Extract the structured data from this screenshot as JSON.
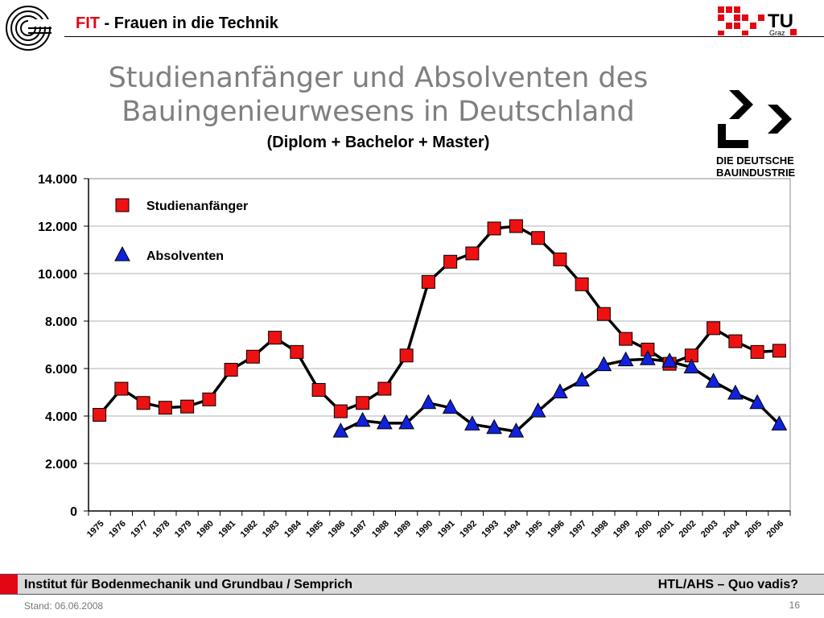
{
  "header": {
    "fit": "FIT",
    "rest": " - Frauen in die Technik",
    "tu_logo_text": "TU",
    "tu_logo_sub": "Graz"
  },
  "title": {
    "line1": "Studienanfänger und Absolventen des",
    "line2": "Bauingenieurwesens in Deutschland",
    "subtitle": "(Diplom + Bachelor + Master)"
  },
  "logo_bau": {
    "line1": "DIE DEUTSCHE",
    "line2": "BAUINDUSTRIE"
  },
  "colors": {
    "accent": "#e30613",
    "square_marker": "#ee1111",
    "triangle_marker": "#1122dd",
    "line": "#000000",
    "title_gray": "#7f7f7f"
  },
  "chart_data": {
    "type": "line",
    "categories": [
      "1975",
      "1976",
      "1977",
      "1978",
      "1979",
      "1980",
      "1981",
      "1982",
      "1983",
      "1984",
      "1985",
      "1986",
      "1987",
      "1988",
      "1989",
      "1990",
      "1991",
      "1992",
      "1993",
      "1994",
      "1995",
      "1996",
      "1997",
      "1998",
      "1999",
      "2000",
      "2001",
      "2002",
      "2003",
      "2004",
      "2005",
      "2006"
    ],
    "series": [
      {
        "name": "Studienanfänger",
        "marker": "square",
        "values": [
          4050,
          5150,
          4550,
          4350,
          4400,
          4700,
          5950,
          6500,
          7300,
          6700,
          5100,
          4200,
          4550,
          5150,
          6550,
          9650,
          10500,
          10850,
          11900,
          12000,
          11500,
          10600,
          9550,
          8300,
          7250,
          6800,
          6200,
          6550,
          7700,
          7150,
          6700,
          6750
        ]
      },
      {
        "name": "Absolventen",
        "marker": "triangle",
        "values": [
          null,
          null,
          null,
          null,
          null,
          null,
          null,
          null,
          null,
          null,
          null,
          3350,
          3800,
          3700,
          3700,
          4550,
          4350,
          3650,
          3500,
          3350,
          4200,
          5000,
          5500,
          6150,
          6350,
          6400,
          6300,
          6050,
          5450,
          4950,
          4550,
          3650
        ]
      }
    ],
    "yticks": [
      "0",
      "2.000",
      "4.000",
      "6.000",
      "8.000",
      "10.000",
      "12.000",
      "14.000"
    ],
    "ylim": [
      0,
      14000
    ],
    "grid": true,
    "legend_placement": "top-left"
  },
  "footer": {
    "left": "Institut für Bodenmechanik und Grundbau / Semprich",
    "right": "HTL/AHS – Quo vadis?",
    "stand": "Stand: 06.06.2008",
    "page": "16"
  }
}
